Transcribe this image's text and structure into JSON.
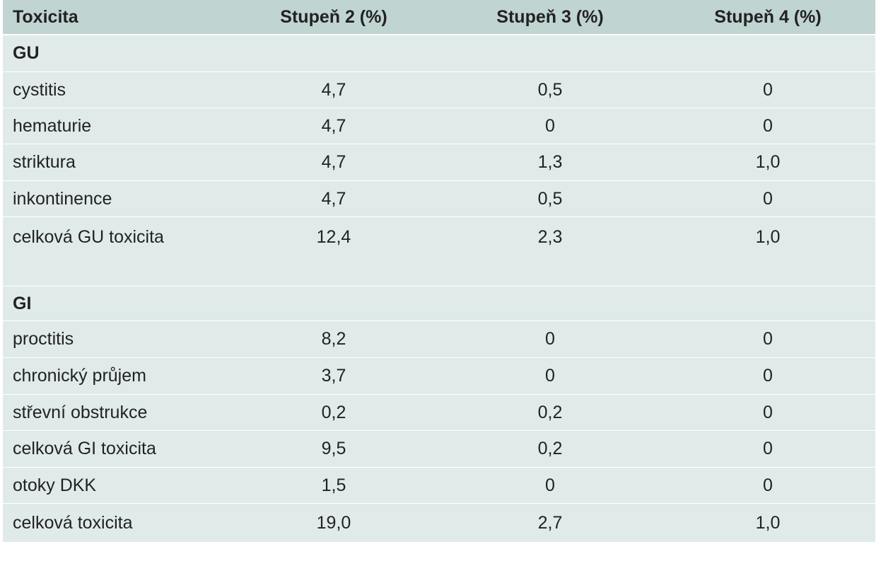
{
  "table": {
    "headers": [
      "Toxicita",
      "Stupeň 2 (%)",
      "Stupeň 3 (%)",
      "Stupeň 4 (%)"
    ],
    "sections": [
      {
        "title": "GU",
        "rows": [
          [
            "cystitis",
            "4,7",
            "0,5",
            "0"
          ],
          [
            "hematurie",
            "4,7",
            "0",
            "0"
          ],
          [
            "striktura",
            "4,7",
            "1,3",
            "1,0"
          ],
          [
            "inkontinence",
            "4,7",
            "0,5",
            "0"
          ],
          [
            "celková GU toxicita",
            "12,4",
            "2,3",
            "1,0"
          ]
        ]
      },
      {
        "title": "GI",
        "rows": [
          [
            "proctitis",
            "8,2",
            "0",
            "0"
          ],
          [
            "chronický průjem",
            "3,7",
            "0",
            "0"
          ],
          [
            "střevní obstrukce",
            "0,2",
            "0,2",
            "0"
          ],
          [
            "celková GI toxicita",
            "9,5",
            "0,2",
            "0"
          ],
          [
            "otoky DKK",
            "1,5",
            "0",
            "0"
          ],
          [
            "celková toxicita",
            "19,0",
            "2,7",
            "1,0"
          ]
        ]
      }
    ]
  }
}
